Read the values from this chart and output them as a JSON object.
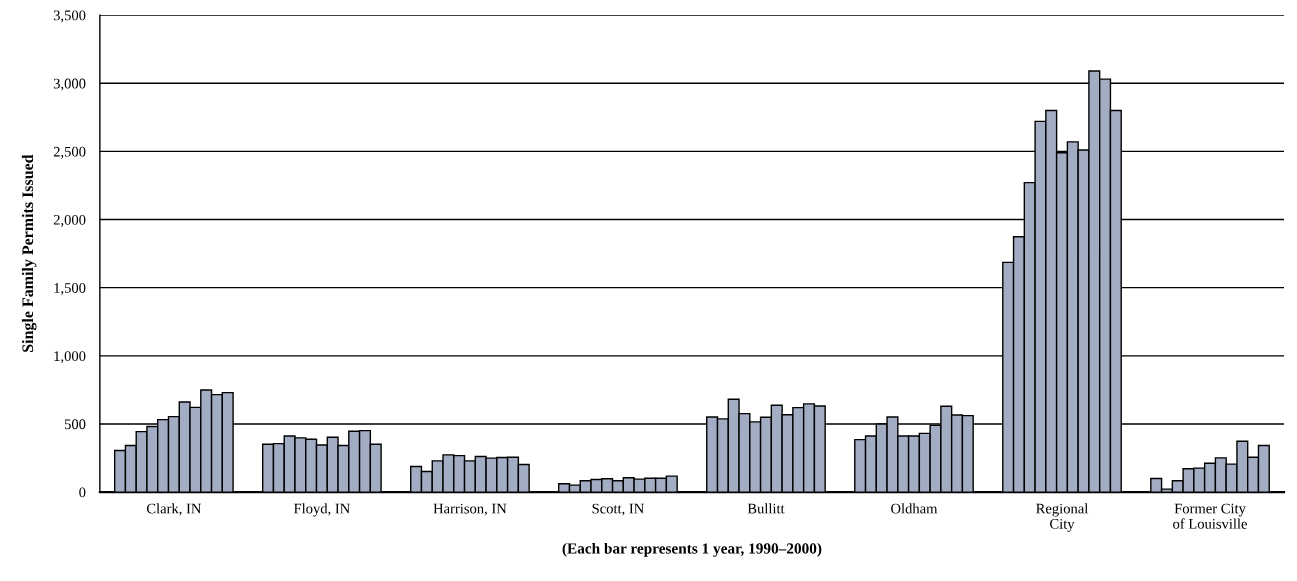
{
  "chart_data": {
    "type": "bar",
    "xlabel": "(Each bar represents 1 year, 1990–2000)",
    "ylabel": "Single Family Permits Issued",
    "categories": [
      "Clark, IN",
      "Floyd, IN",
      "Harrison, IN",
      "Scott, IN",
      "Bullitt",
      "Oldham",
      "Regional\nCity",
      "Former City\nof Louisville"
    ],
    "series": [
      {
        "color": "#a2adc4",
        "values": [
          305,
          351,
          188,
          61,
          551,
          385,
          1686,
          100
        ]
      },
      {
        "color": "#a2adc4",
        "values": [
          342,
          356,
          151,
          51,
          537,
          412,
          1874,
          22
        ]
      },
      {
        "color": "#a2adc4",
        "values": [
          444,
          412,
          229,
          83,
          681,
          500,
          2271,
          83
        ]
      },
      {
        "color": "#a2adc4",
        "values": [
          481,
          398,
          273,
          93,
          576,
          551,
          2720,
          171
        ]
      },
      {
        "color": "#a2adc4",
        "values": [
          532,
          388,
          268,
          98,
          515,
          412,
          2800,
          176
        ]
      },
      {
        "color": "#a2adc4",
        "values": [
          554,
          346,
          229,
          83,
          549,
          412,
          2490,
          212
        ]
      },
      {
        "color": "#a2adc4",
        "values": [
          661,
          403,
          261,
          105,
          637,
          431,
          2570,
          251
        ]
      },
      {
        "color": "#a2adc4",
        "values": [
          622,
          342,
          249,
          95,
          568,
          490,
          2510,
          205
        ]
      },
      {
        "color": "#a2adc4",
        "values": [
          749,
          447,
          254,
          102,
          620,
          630,
          3090,
          373
        ]
      },
      {
        "color": "#a2adc4",
        "values": [
          715,
          451,
          256,
          102,
          647,
          566,
          3030,
          256
        ]
      },
      {
        "color": "#a2adc4",
        "values": [
          730,
          351,
          203,
          117,
          632,
          561,
          2800,
          342
        ]
      }
    ],
    "ylim": [
      0,
      3500
    ],
    "yticks": [
      0,
      500,
      {
        "value": 1000,
        "label": "1,000"
      },
      {
        "value": 1500,
        "label": "1,500"
      },
      {
        "value": 2000,
        "label": "2,000"
      },
      {
        "value": 2500,
        "label": "2,500"
      },
      {
        "value": 3000,
        "label": "3,000"
      },
      {
        "value": 3500,
        "label": "3,500"
      }
    ],
    "grid": "y"
  }
}
